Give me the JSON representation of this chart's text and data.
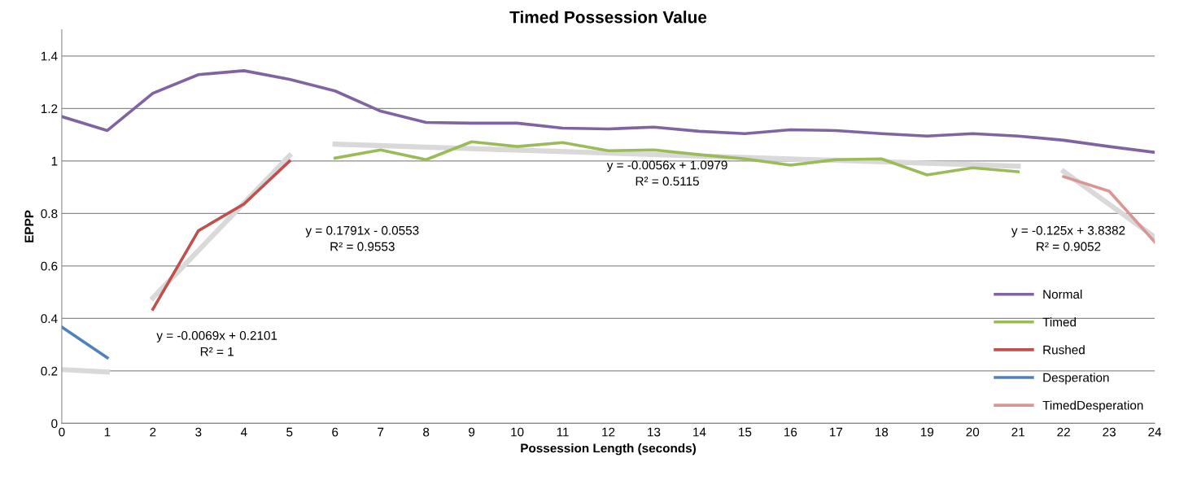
{
  "chart_data": {
    "type": "line",
    "title": "Timed Possession Value",
    "xlabel": "Possession Length (seconds)",
    "ylabel": "EPPP",
    "xlim": [
      0,
      24
    ],
    "xticks": [
      0,
      1,
      2,
      3,
      4,
      5,
      6,
      7,
      8,
      9,
      10,
      11,
      12,
      13,
      14,
      15,
      16,
      17,
      18,
      19,
      20,
      21,
      22,
      23,
      24
    ],
    "ylim": [
      0,
      1.5
    ],
    "yticks": [
      0,
      0.2,
      0.4,
      0.6,
      0.8,
      1,
      1.2,
      1.4
    ],
    "grid": "y",
    "legend": "lower right",
    "marker": "none",
    "line_style": "solid",
    "series": [
      {
        "type": "line",
        "color": "#d9d9d9",
        "x": [
          0,
          1
        ],
        "values": [
          0.205,
          0.196
        ]
      },
      {
        "type": "line",
        "color": "#d9d9d9",
        "x": [
          2,
          5
        ],
        "values": [
          0.478,
          1.02
        ]
      },
      {
        "type": "line",
        "color": "#d9d9d9",
        "x": [
          6,
          21
        ],
        "values": [
          1.064,
          0.98
        ]
      },
      {
        "type": "line",
        "color": "#d9d9d9",
        "x": [
          22,
          24
        ],
        "values": [
          0.96,
          0.71
        ]
      },
      {
        "name": "Normal",
        "color": "#8064a2",
        "x": [
          0,
          1,
          2,
          3,
          4,
          5,
          6,
          7,
          8,
          9,
          10,
          11,
          12,
          13,
          14,
          15,
          16,
          17,
          18,
          19,
          20,
          21,
          22,
          23,
          24
        ],
        "values": [
          1.169,
          1.116,
          1.258,
          1.329,
          1.344,
          1.311,
          1.267,
          1.19,
          1.147,
          1.144,
          1.144,
          1.125,
          1.122,
          1.129,
          1.113,
          1.104,
          1.119,
          1.116,
          1.104,
          1.095,
          1.104,
          1.095,
          1.079,
          1.055,
          1.033
        ]
      },
      {
        "name": "Timed",
        "color": "#9bbb59",
        "x": [
          6,
          7,
          8,
          9,
          10,
          11,
          12,
          13,
          14,
          15,
          16,
          17,
          18,
          19,
          20,
          21
        ],
        "values": [
          1.011,
          1.042,
          1.005,
          1.073,
          1.055,
          1.07,
          1.039,
          1.042,
          1.024,
          1.008,
          0.984,
          1.005,
          1.008,
          0.947,
          0.974,
          0.959
        ]
      },
      {
        "name": "Rushed",
        "color": "#c0504d",
        "x": [
          2,
          3,
          4,
          5
        ],
        "values": [
          0.435,
          0.734,
          0.836,
          0.999
        ]
      },
      {
        "name": "Desperation",
        "color": "#4f81bd",
        "x": [
          0,
          1
        ],
        "values": [
          0.367,
          0.25
        ]
      },
      {
        "name": "TimedDesperation",
        "color": "#d99694",
        "x": [
          22,
          23,
          24
        ],
        "values": [
          0.94,
          0.885,
          0.691
        ]
      }
    ],
    "annotations": [
      "y = -0.0069x + 0.2101\nR² = 1",
      "y = 0.1791x - 0.0553\nR² = 0.9553",
      "y = -0.0056x + 1.0979\nR² = 0.5115",
      "y = -0.125x + 3.8382\nR² = 0.9052"
    ]
  }
}
